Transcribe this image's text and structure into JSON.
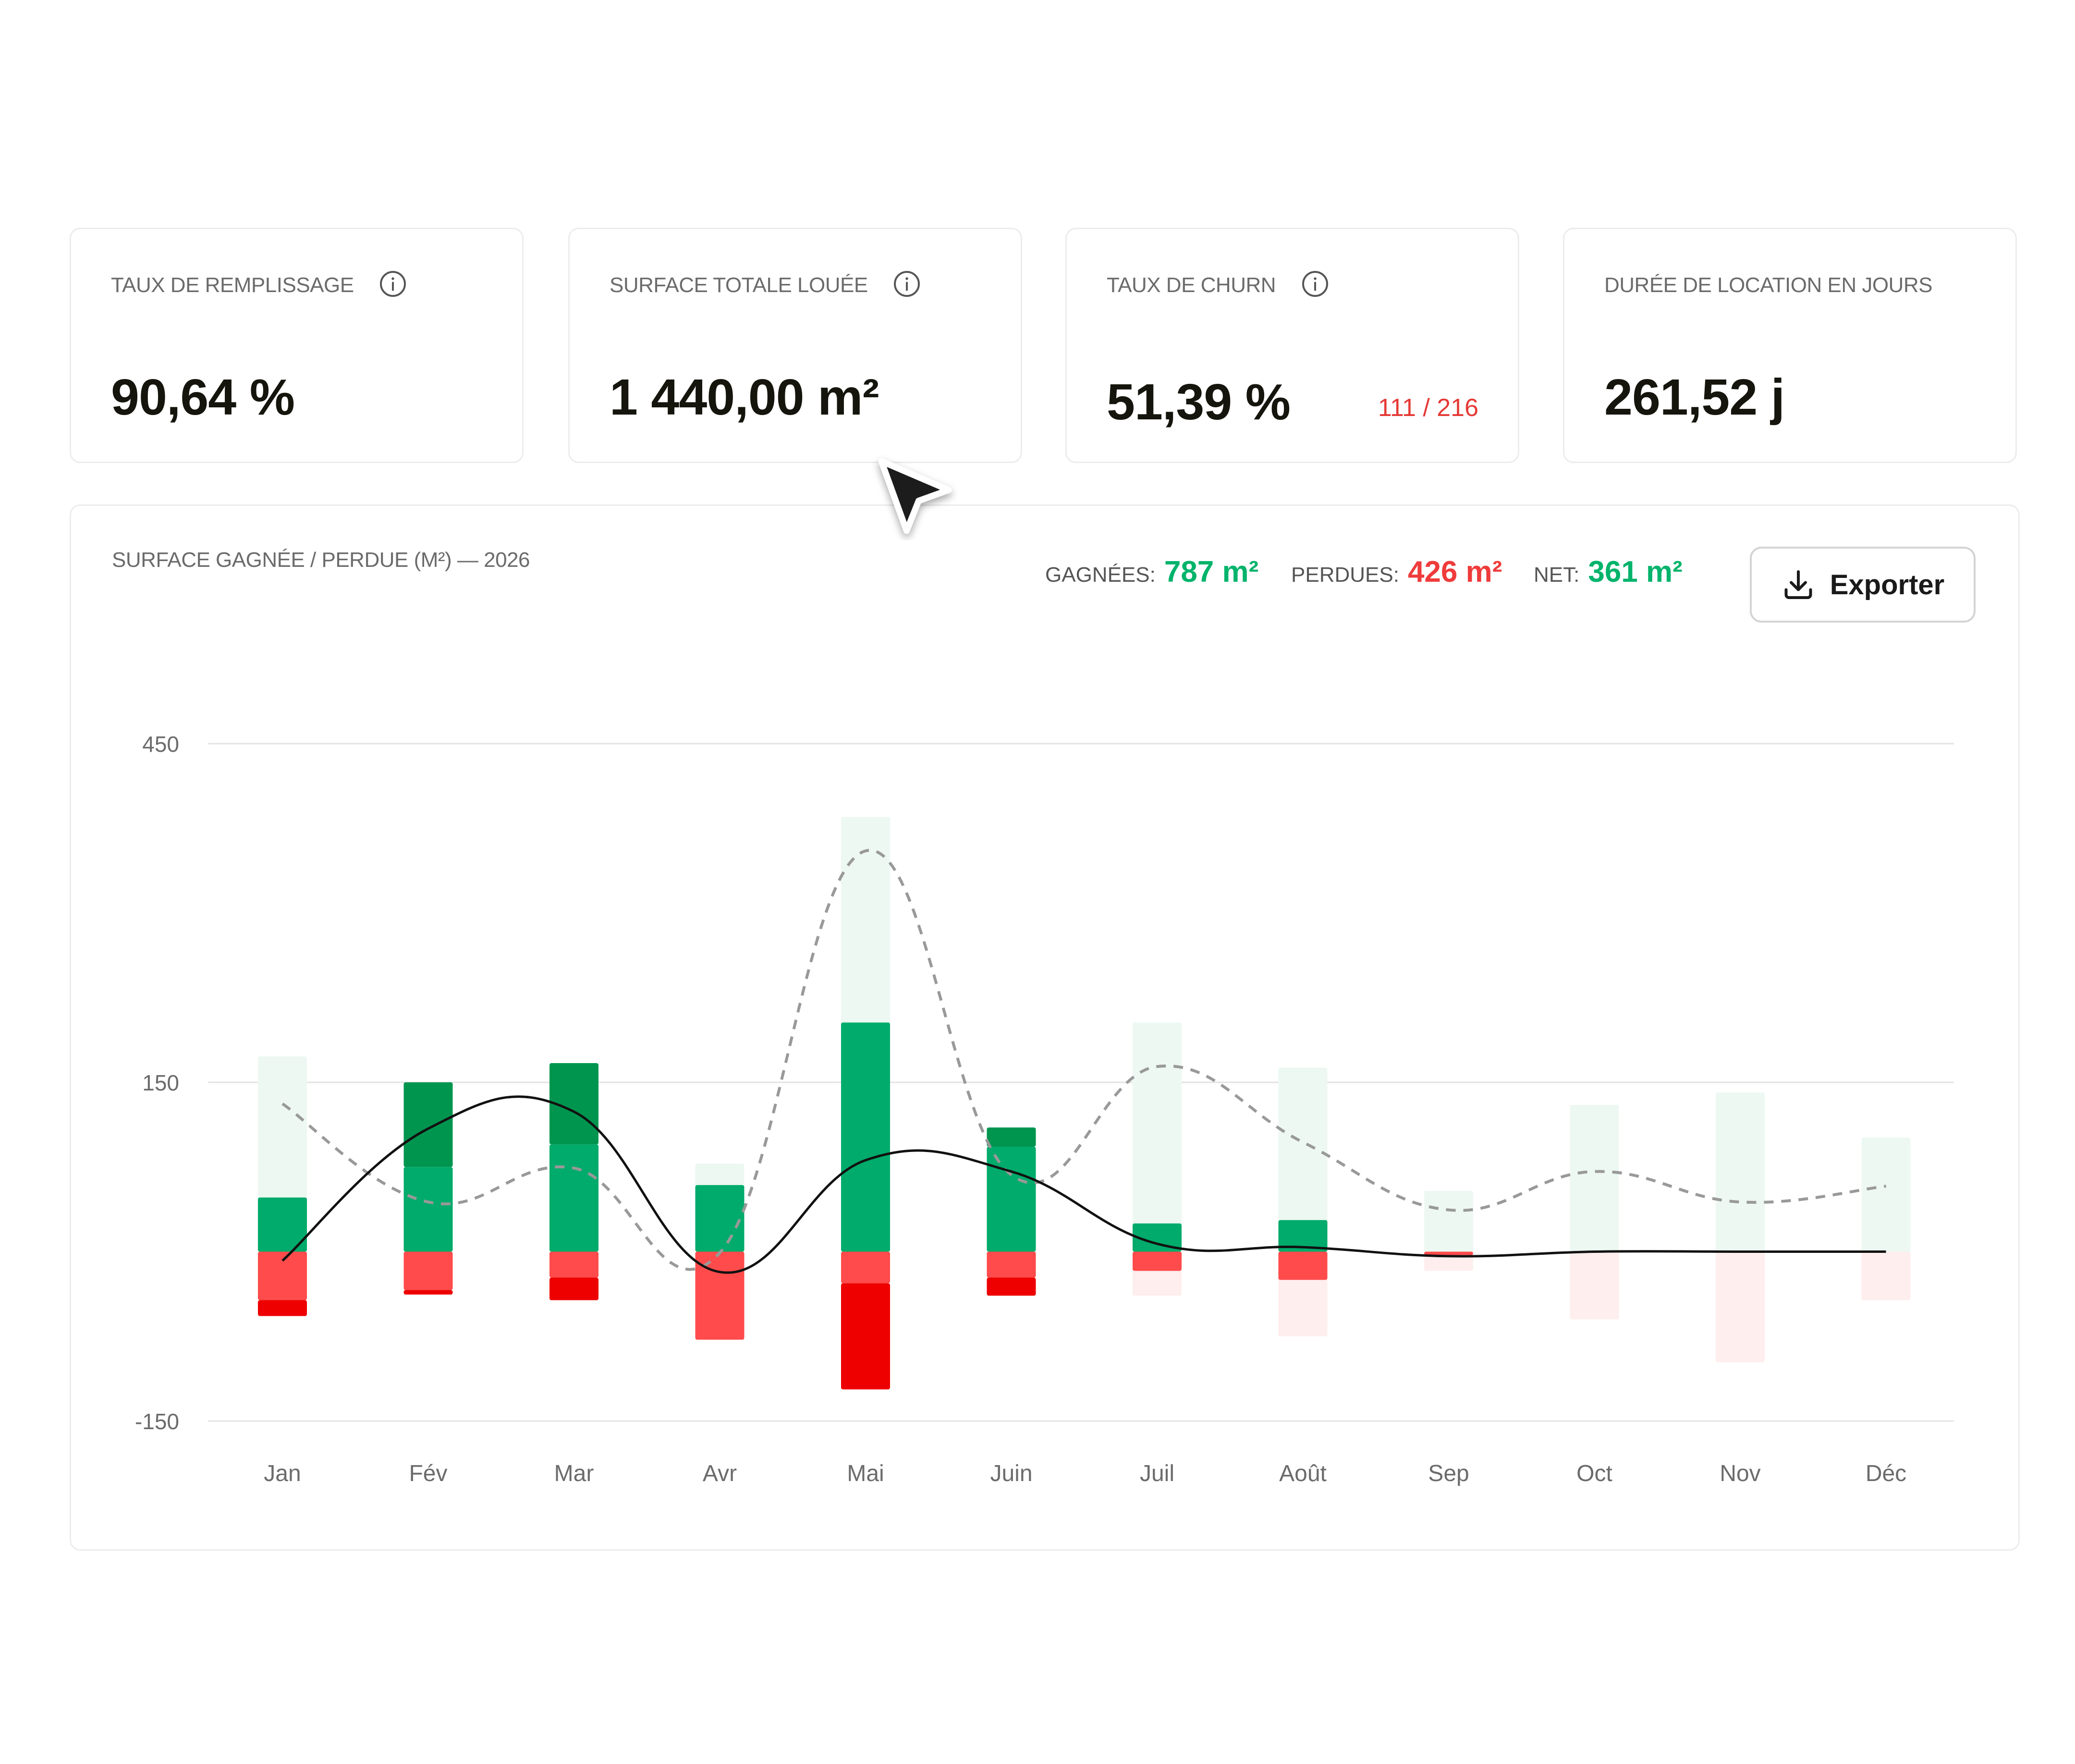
{
  "kpis": [
    {
      "label": "TAUX DE REMPLISSAGE",
      "value": "90,64 %",
      "info_icon": "info-icon"
    },
    {
      "label": "SURFACE TOTALE LOUÉE",
      "value": "1 440,00 m²",
      "info_icon": "info-icon"
    },
    {
      "label": "TAUX DE CHURN",
      "value": "51,39 %",
      "sub": "111 / 216",
      "info_icon": "info-icon"
    },
    {
      "label": "DURÉE DE LOCATION EN JOURS",
      "value": "261,52 j"
    }
  ],
  "chart_panel": {
    "title": "SURFACE GAGNÉE / PERDUE (M²) — 2026",
    "stats": {
      "gained_label": "GAGNÉES:",
      "gained_value": "787 m²",
      "lost_label": "PERDUES:",
      "lost_value": "426 m²",
      "net_label": "NET:",
      "net_value": "361 m²"
    },
    "export_label": "Exporter",
    "export_icon": "download-icon"
  },
  "colors": {
    "green_dark": "#00954f",
    "green": "#00ab6b",
    "green_faint": "#edf8f2",
    "red": "#ff4b4b",
    "red_dark": "#ee0000",
    "red_faint": "#ffeeee",
    "net_line": "#111111",
    "dashed_line": "#999999"
  },
  "chart_data": {
    "type": "bar",
    "categories": [
      "Jan",
      "Fév",
      "Mar",
      "Avr",
      "Mai",
      "Juin",
      "Juil",
      "Août",
      "Sep",
      "Oct",
      "Nov",
      "Déc"
    ],
    "y_ticks": [
      450,
      150,
      -150
    ],
    "ylim": [
      -150,
      450
    ],
    "gained_primary": [
      48,
      75,
      95,
      59,
      203,
      93,
      25,
      28,
      0,
      0,
      0,
      0
    ],
    "gained_secondary": [
      0,
      75,
      72,
      0,
      0,
      17,
      0,
      0,
      0,
      0,
      0,
      0
    ],
    "gained_faint": [
      173,
      0,
      0,
      78,
      385,
      0,
      203,
      163,
      54,
      130,
      141,
      101
    ],
    "lost_primary": [
      -43,
      -34,
      -23,
      -78,
      -28,
      -23,
      -17,
      -25,
      -3,
      0,
      0,
      0
    ],
    "lost_secondary": [
      -14,
      -4,
      -20,
      0,
      -94,
      -16,
      0,
      0,
      0,
      0,
      0,
      0
    ],
    "lost_faint": [
      0,
      0,
      0,
      0,
      0,
      0,
      -39,
      -75,
      -17,
      -60,
      -98,
      -43
    ],
    "net_line": [
      -8,
      109,
      124,
      -18,
      81,
      71,
      7,
      4,
      -4,
      0,
      0,
      0
    ],
    "dashed_line": [
      131,
      44,
      74,
      -1,
      355,
      68,
      164,
      97,
      37,
      71,
      44,
      58
    ],
    "grid": true
  }
}
